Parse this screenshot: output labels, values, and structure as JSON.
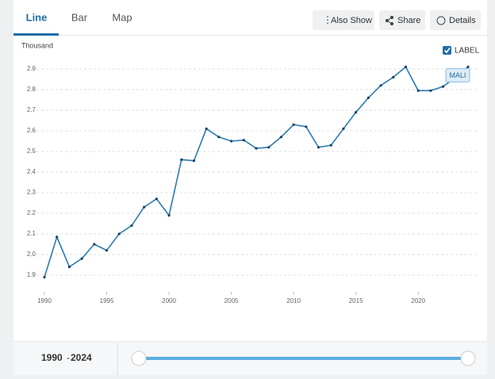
{
  "tabs": [
    "Line",
    "Bar",
    "Map"
  ],
  "buttons": [
    "Also Show",
    "Share",
    "Details"
  ],
  "label_toggle": "LABEL",
  "chart_data": {
    "type": "line",
    "y_unit": "Thousand",
    "x": [
      1990,
      1991,
      1992,
      1993,
      1994,
      1995,
      1996,
      1997,
      1998,
      1999,
      2000,
      2001,
      2002,
      2003,
      2004,
      2005,
      2006,
      2007,
      2008,
      2009,
      2010,
      2011,
      2012,
      2013,
      2014,
      2015,
      2016,
      2017,
      2018,
      2019,
      2020,
      2021,
      2022,
      2023,
      2024
    ],
    "series": [
      {
        "name": "MALI",
        "color": "#2b7bb2",
        "values": [
          1.89,
          2.085,
          1.94,
          1.98,
          2.05,
          2.02,
          2.1,
          2.14,
          2.23,
          2.27,
          2.19,
          2.46,
          2.455,
          2.61,
          2.57,
          2.55,
          2.555,
          2.515,
          2.52,
          2.57,
          2.63,
          2.62,
          2.52,
          2.53,
          2.61,
          2.69,
          2.76,
          2.82,
          2.86,
          2.91,
          2.795,
          2.795,
          2.815,
          2.86,
          2.91
        ]
      }
    ],
    "xlim": [
      1990,
      2024
    ],
    "xticks": [
      1990,
      1995,
      2000,
      2005,
      2010,
      2015,
      2020
    ],
    "ylim": [
      1.85,
      2.95
    ],
    "yticks": [
      1.9,
      {
        "value": 2,
        "label": "2.0"
      },
      2.1,
      2.2,
      2.3,
      2.4,
      2.5,
      2.6,
      2.7,
      2.8,
      2.9
    ],
    "grid": true
  },
  "range": {
    "start": "1990",
    "separator": "-",
    "end": "2024"
  }
}
